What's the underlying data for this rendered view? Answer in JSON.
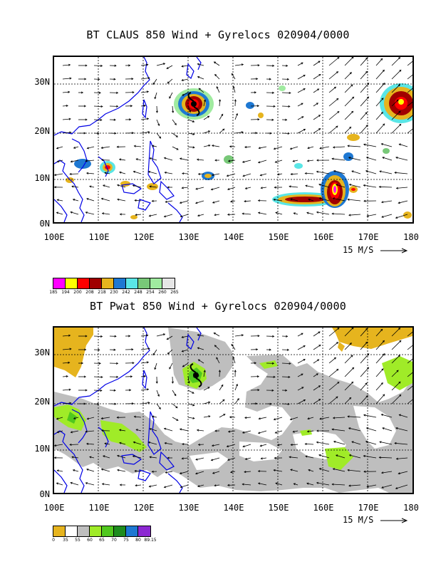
{
  "panels": [
    {
      "title": "BT CLAUS 850 Wind + Gyrelocs 020904/0000",
      "y_labels": [
        "30N",
        "20N",
        "10N",
        "0N"
      ],
      "x_labels": [
        "100E",
        "110E",
        "120E",
        "130E",
        "140E",
        "150E",
        "160E",
        "170E",
        "180"
      ],
      "speed_label": "15 M/S",
      "colorbar": {
        "colors": [
          "#ff00ff",
          "#ffff00",
          "#ff0000",
          "#a00000",
          "#e6b41e",
          "#1e78d2",
          "#5ae6e6",
          "#78c878",
          "#a0eba0",
          "#e6e6e6"
        ],
        "labels": [
          "185",
          "194",
          "200",
          "208",
          "218",
          "230",
          "242",
          "248",
          "254",
          "260",
          "265"
        ]
      }
    },
    {
      "title": "BT Pwat 850 Wind + Gyrelocs 020904/0000",
      "y_labels": [
        "30N",
        "20N",
        "10N",
        "0N"
      ],
      "x_labels": [
        "100E",
        "110E",
        "120E",
        "130E",
        "140E",
        "150E",
        "160E",
        "170E",
        "180"
      ],
      "speed_label": "15 M/S",
      "colorbar": {
        "colors": [
          "#e6b41e",
          "#ffffff",
          "#bebebe",
          "#a0eb28",
          "#50c81e",
          "#1e8c1e",
          "#1e78d2",
          "#8c28d2"
        ],
        "labels": [
          "0",
          "35",
          "55",
          "60",
          "65",
          "70",
          "75",
          "80",
          "89.15"
        ]
      }
    }
  ]
}
